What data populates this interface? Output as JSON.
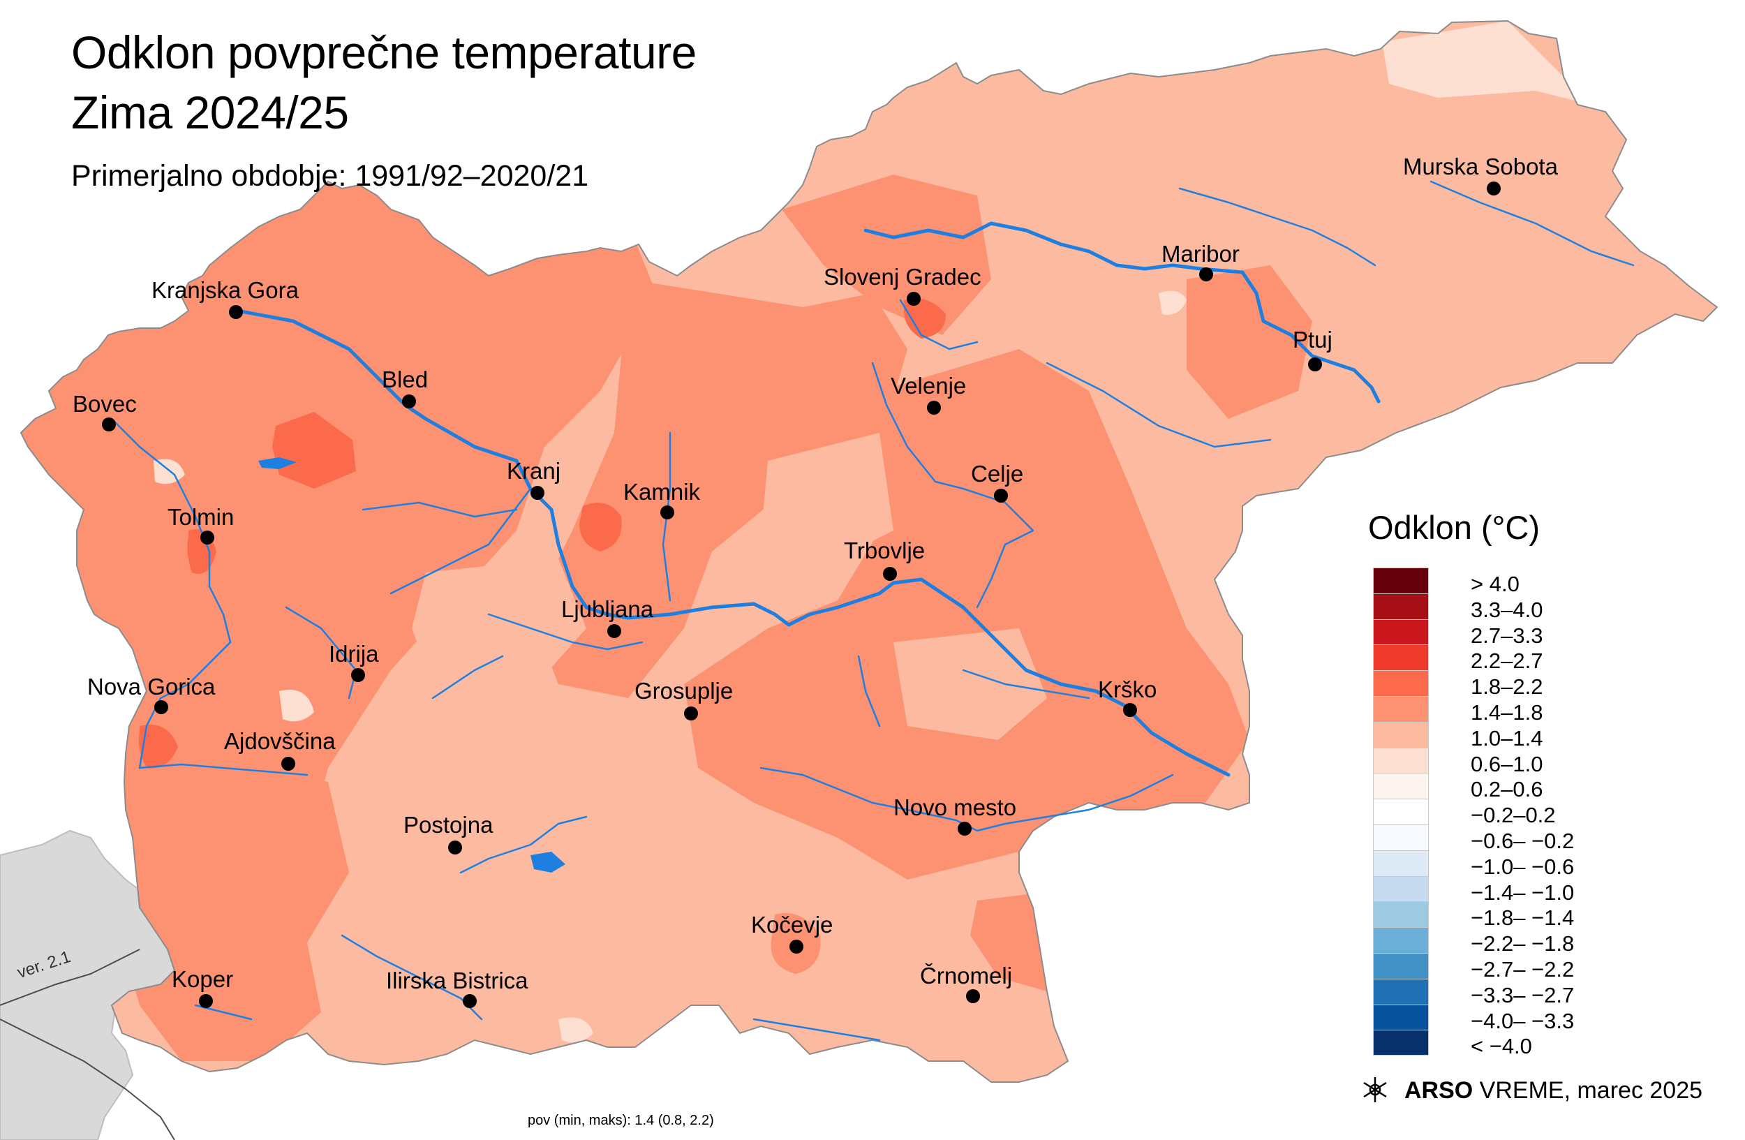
{
  "title_line1": "Odklon povprečne temperature",
  "title_line2": "Zima 2024/25",
  "subtitle": "Primerjalno obdobje: 1991/92–2020/21",
  "legend": {
    "title": "Odklon (°C)",
    "classes": [
      {
        "label": "> 4.0",
        "color": "#67000d"
      },
      {
        "label": "3.3–4.0",
        "color": "#a50f15"
      },
      {
        "label": "2.7–3.3",
        "color": "#cb181d"
      },
      {
        "label": "2.2–2.7",
        "color": "#ef3b2c"
      },
      {
        "label": "1.8–2.2",
        "color": "#fb6a4a"
      },
      {
        "label": "1.4–1.8",
        "color": "#fc9272"
      },
      {
        "label": "1.0–1.4",
        "color": "#fcbba1"
      },
      {
        "label": "0.6–1.0",
        "color": "#fee0d2"
      },
      {
        "label": "0.2–0.6",
        "color": "#fff5f0"
      },
      {
        "label": "−0.2–0.2",
        "color": "#ffffff"
      },
      {
        "label": "−0.6– −0.2",
        "color": "#f7fbff"
      },
      {
        "label": "−1.0– −0.6",
        "color": "#deebf7"
      },
      {
        "label": "−1.4– −1.0",
        "color": "#c6dbef"
      },
      {
        "label": "−1.8– −1.4",
        "color": "#9ecae1"
      },
      {
        "label": "−2.2– −1.8",
        "color": "#6baed6"
      },
      {
        "label": "−2.7– −2.2",
        "color": "#4292c6"
      },
      {
        "label": "−3.3– −2.7",
        "color": "#2171b5"
      },
      {
        "label": "−4.0– −3.3",
        "color": "#08519c"
      },
      {
        "label": "< −4.0",
        "color": "#08306b"
      }
    ]
  },
  "cities": [
    {
      "name": "Murska Sobota"
    },
    {
      "name": "Maribor"
    },
    {
      "name": "Slovenj Gradec"
    },
    {
      "name": "Ptuj"
    },
    {
      "name": "Kranjska Gora"
    },
    {
      "name": "Velenje"
    },
    {
      "name": "Bled"
    },
    {
      "name": "Bovec"
    },
    {
      "name": "Celje"
    },
    {
      "name": "Kranj"
    },
    {
      "name": "Kamnik"
    },
    {
      "name": "Tolmin"
    },
    {
      "name": "Trbovlje"
    },
    {
      "name": "Ljubljana"
    },
    {
      "name": "Idrija"
    },
    {
      "name": "Nova Gorica"
    },
    {
      "name": "Grosuplje"
    },
    {
      "name": "Krško"
    },
    {
      "name": "Ajdovščina"
    },
    {
      "name": "Novo mesto"
    },
    {
      "name": "Postojna"
    },
    {
      "name": "Kočevje"
    },
    {
      "name": "Črnomelj"
    },
    {
      "name": "Koper"
    },
    {
      "name": "Ilirska Bistrica"
    }
  ],
  "footer": {
    "brand_bold": "ARSO",
    "brand_rest": " VREME, marec 2025"
  },
  "stats": "pov (min, maks): 1.4 (0.8, 2.2)",
  "version": "ver. 2.1",
  "colors": {
    "river": "#1e7fe0",
    "neighbor": "#d9d9d9",
    "border": "#4d4d4d"
  }
}
